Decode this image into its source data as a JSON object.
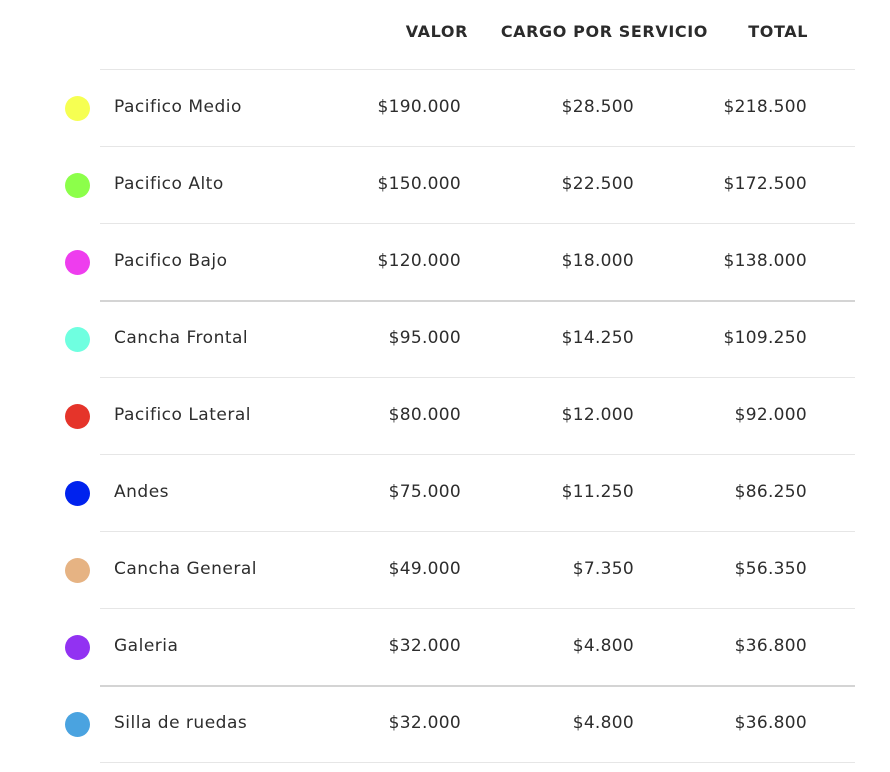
{
  "header": {
    "valor": "VALOR",
    "cargo": "CARGO POR SERVICIO",
    "total": "TOTAL"
  },
  "rows": [
    {
      "name": "Pacifico Medio",
      "valor": "$190.000",
      "cargo": "$28.500",
      "total": "$218.500",
      "color": "#f6ff52"
    },
    {
      "name": "Pacifico Alto",
      "valor": "$150.000",
      "cargo": "$22.500",
      "total": "$172.500",
      "color": "#8cff4a"
    },
    {
      "name": "Pacifico Bajo",
      "valor": "$120.000",
      "cargo": "$18.000",
      "total": "$138.000",
      "color": "#ee3dee"
    },
    {
      "name": "Cancha Frontal",
      "valor": "$95.000",
      "cargo": "$14.250",
      "total": "$109.250",
      "color": "#6fffe0"
    },
    {
      "name": "Pacifico Lateral",
      "valor": "$80.000",
      "cargo": "$12.000",
      "total": "$92.000",
      "color": "#e5342a"
    },
    {
      "name": "Andes",
      "valor": "$75.000",
      "cargo": "$11.250",
      "total": "$86.250",
      "color": "#0022ee"
    },
    {
      "name": "Cancha General",
      "valor": "$49.000",
      "cargo": "$7.350",
      "total": "$56.350",
      "color": "#e6b383"
    },
    {
      "name": "Galeria",
      "valor": "$32.000",
      "cargo": "$4.800",
      "total": "$36.800",
      "color": "#9232f2"
    },
    {
      "name": "Silla de ruedas",
      "valor": "$32.000",
      "cargo": "$4.800",
      "total": "$36.800",
      "color": "#4aa3e0"
    }
  ]
}
